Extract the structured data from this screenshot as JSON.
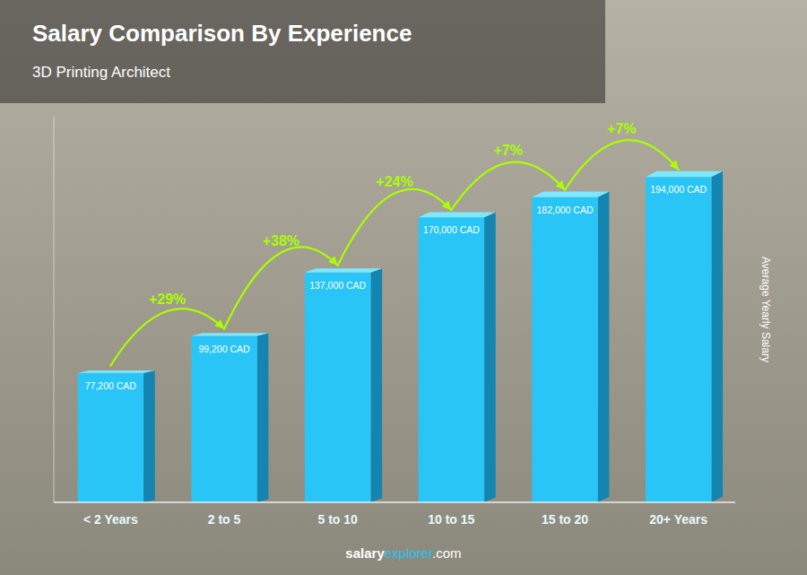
{
  "chart_data": {
    "type": "bar",
    "title": "Salary Comparison By Experience",
    "subtitle": "3D Printing Architect",
    "ylabel": "Average Yearly Salary",
    "categories": [
      "< 2 Years",
      "2 to 5",
      "5 to 10",
      "10 to 15",
      "15 to 20",
      "20+ Years"
    ],
    "values": [
      77200,
      99200,
      137000,
      170000,
      182000,
      194000
    ],
    "value_labels": [
      "77,200 CAD",
      "99,200 CAD",
      "137,000 CAD",
      "170,000 CAD",
      "182,000 CAD",
      "194,000 CAD"
    ],
    "data_labels": true,
    "annotations": [
      "+29%",
      "+38%",
      "+24%",
      "+7%",
      "+7%"
    ],
    "color": "#29c5f6",
    "ylim": [
      0,
      230000
    ],
    "tick_labels": "x",
    "grid": false,
    "footer": [
      "salary",
      "explorer",
      ".com"
    ]
  }
}
